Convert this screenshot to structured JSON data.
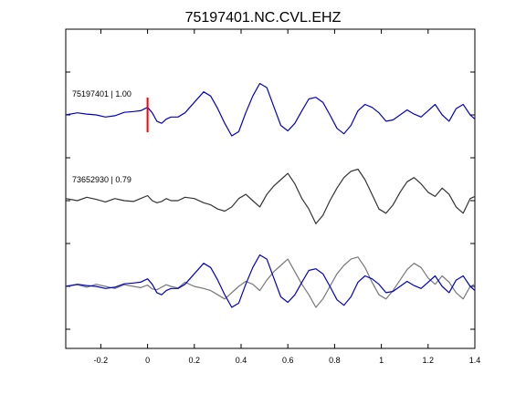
{
  "figure": {
    "title": "75197401.NC.CVL.EHZ"
  },
  "chart_data": {
    "type": "line",
    "title": "75197401.NC.CVL.EHZ",
    "xlabel": "",
    "ylabel": "",
    "xlim": [
      -0.35,
      1.4
    ],
    "x_ticks": [
      -0.2,
      0,
      0.2,
      0.4,
      0.6,
      0.8,
      1,
      1.2,
      1.4
    ],
    "x_tick_labels": [
      "-0.2",
      "0",
      "0.2",
      "0.4",
      "0.6",
      "0.8",
      "1",
      "1.2",
      "1.4"
    ],
    "y_ticks_unlabeled": 7,
    "grid": false,
    "pick_marker": {
      "x": 0,
      "color": "#ff0000"
    },
    "trace_labels": [
      {
        "text": "75197401 | 1.00"
      },
      {
        "text": "73652930 | 0.79"
      }
    ],
    "series": [
      {
        "id": "75197401",
        "color": "#0000cc",
        "baseline": 1.0,
        "x": [
          -0.35,
          -0.3,
          -0.26,
          -0.22,
          -0.18,
          -0.14,
          -0.1,
          -0.06,
          -0.03,
          0,
          0.02,
          0.04,
          0.06,
          0.08,
          0.1,
          0.13,
          0.16,
          0.2,
          0.24,
          0.27,
          0.3,
          0.33,
          0.36,
          0.39,
          0.42,
          0.45,
          0.48,
          0.51,
          0.54,
          0.57,
          0.6,
          0.63,
          0.66,
          0.69,
          0.72,
          0.75,
          0.78,
          0.81,
          0.84,
          0.87,
          0.9,
          0.93,
          0.96,
          0.99,
          1.02,
          1.05,
          1.08,
          1.11,
          1.14,
          1.17,
          1.2,
          1.23,
          1.26,
          1.29,
          1.32,
          1.35,
          1.38,
          1.4
        ],
        "y": [
          0.0,
          0.05,
          0.02,
          0.0,
          -0.05,
          -0.02,
          0.06,
          0.08,
          0.1,
          0.18,
          0.05,
          -0.15,
          -0.2,
          -0.1,
          -0.05,
          -0.05,
          0.05,
          0.3,
          0.55,
          0.45,
          0.15,
          -0.2,
          -0.5,
          -0.4,
          0.05,
          0.45,
          0.75,
          0.65,
          0.2,
          -0.25,
          -0.38,
          -0.2,
          0.1,
          0.38,
          0.42,
          0.3,
          0.0,
          -0.32,
          -0.45,
          -0.25,
          0.1,
          0.25,
          0.18,
          0.05,
          -0.15,
          -0.12,
          0.0,
          0.12,
          0.02,
          -0.05,
          0.1,
          0.25,
          0.0,
          -0.15,
          0.15,
          0.25,
          0.0,
          -0.1
        ]
      },
      {
        "id": "73652930",
        "color": "#333333",
        "baseline": 3.0,
        "x": [
          -0.35,
          -0.3,
          -0.26,
          -0.22,
          -0.18,
          -0.14,
          -0.1,
          -0.06,
          -0.03,
          0,
          0.02,
          0.04,
          0.06,
          0.08,
          0.1,
          0.13,
          0.16,
          0.2,
          0.24,
          0.27,
          0.3,
          0.33,
          0.36,
          0.39,
          0.42,
          0.45,
          0.48,
          0.51,
          0.54,
          0.57,
          0.6,
          0.63,
          0.66,
          0.69,
          0.72,
          0.75,
          0.78,
          0.81,
          0.84,
          0.87,
          0.9,
          0.93,
          0.96,
          0.99,
          1.02,
          1.05,
          1.08,
          1.11,
          1.14,
          1.17,
          1.2,
          1.23,
          1.26,
          1.29,
          1.32,
          1.35,
          1.38,
          1.4
        ],
        "y": [
          0.05,
          0.0,
          0.08,
          0.03,
          -0.03,
          0.05,
          0.0,
          -0.02,
          0.05,
          0.12,
          0.0,
          -0.05,
          -0.02,
          0.05,
          0.0,
          0.0,
          0.08,
          0.05,
          -0.05,
          -0.1,
          -0.2,
          -0.25,
          -0.15,
          0.05,
          0.15,
          0.0,
          -0.15,
          0.15,
          0.35,
          0.5,
          0.65,
          0.4,
          0.05,
          -0.2,
          -0.55,
          -0.35,
          0.0,
          0.3,
          0.55,
          0.7,
          0.75,
          0.5,
          0.15,
          -0.2,
          -0.3,
          -0.1,
          0.2,
          0.45,
          0.55,
          0.4,
          0.2,
          0.1,
          0.3,
          0.15,
          -0.15,
          -0.3,
          0.05,
          0.1
        ]
      },
      {
        "id": "overlay-75197401",
        "color": "#0000cc",
        "baseline": 5.0,
        "x": [
          -0.35,
          -0.3,
          -0.26,
          -0.22,
          -0.18,
          -0.14,
          -0.1,
          -0.06,
          -0.03,
          0,
          0.02,
          0.04,
          0.06,
          0.08,
          0.1,
          0.13,
          0.16,
          0.2,
          0.24,
          0.27,
          0.3,
          0.33,
          0.36,
          0.39,
          0.42,
          0.45,
          0.48,
          0.51,
          0.54,
          0.57,
          0.6,
          0.63,
          0.66,
          0.69,
          0.72,
          0.75,
          0.78,
          0.81,
          0.84,
          0.87,
          0.9,
          0.93,
          0.96,
          0.99,
          1.02,
          1.05,
          1.08,
          1.11,
          1.14,
          1.17,
          1.2,
          1.23,
          1.26,
          1.29,
          1.32,
          1.35,
          1.38,
          1.4
        ],
        "y": [
          0.0,
          0.05,
          0.02,
          0.0,
          -0.05,
          -0.02,
          0.06,
          0.08,
          0.1,
          0.18,
          0.05,
          -0.15,
          -0.2,
          -0.1,
          -0.05,
          -0.05,
          0.05,
          0.3,
          0.55,
          0.45,
          0.15,
          -0.2,
          -0.5,
          -0.4,
          0.05,
          0.45,
          0.75,
          0.65,
          0.2,
          -0.25,
          -0.38,
          -0.2,
          0.1,
          0.38,
          0.42,
          0.3,
          0.0,
          -0.32,
          -0.45,
          -0.25,
          0.1,
          0.25,
          0.18,
          0.05,
          -0.15,
          -0.12,
          0.0,
          0.12,
          0.02,
          -0.05,
          0.1,
          0.25,
          0.0,
          -0.15,
          0.15,
          0.25,
          0.0,
          -0.1
        ]
      },
      {
        "id": "overlay-73652930",
        "color": "#777777",
        "baseline": 5.0,
        "x": [
          -0.35,
          -0.3,
          -0.26,
          -0.22,
          -0.18,
          -0.14,
          -0.1,
          -0.06,
          -0.03,
          0,
          0.02,
          0.04,
          0.06,
          0.08,
          0.1,
          0.13,
          0.16,
          0.2,
          0.24,
          0.27,
          0.3,
          0.33,
          0.36,
          0.39,
          0.42,
          0.45,
          0.48,
          0.51,
          0.54,
          0.57,
          0.6,
          0.63,
          0.66,
          0.69,
          0.72,
          0.75,
          0.78,
          0.81,
          0.84,
          0.87,
          0.9,
          0.93,
          0.96,
          0.99,
          1.02,
          1.05,
          1.08,
          1.11,
          1.14,
          1.17,
          1.2,
          1.23,
          1.26,
          1.29,
          1.32,
          1.35,
          1.38,
          1.4
        ],
        "y": [
          0.0,
          0.04,
          -0.02,
          0.05,
          0.0,
          -0.05,
          0.04,
          0.0,
          -0.03,
          0.03,
          -0.06,
          -0.08,
          -0.02,
          0.04,
          0.0,
          -0.04,
          0.1,
          0.0,
          -0.05,
          -0.1,
          -0.2,
          -0.3,
          -0.15,
          0.0,
          0.12,
          0.05,
          -0.1,
          0.15,
          0.35,
          0.5,
          0.65,
          0.35,
          0.05,
          -0.2,
          -0.5,
          -0.3,
          0.0,
          0.3,
          0.5,
          0.65,
          0.7,
          0.45,
          0.1,
          -0.2,
          -0.3,
          -0.1,
          0.15,
          0.4,
          0.55,
          0.45,
          0.2,
          0.05,
          0.25,
          0.1,
          -0.15,
          -0.3,
          0.0,
          0.05
        ]
      }
    ]
  }
}
